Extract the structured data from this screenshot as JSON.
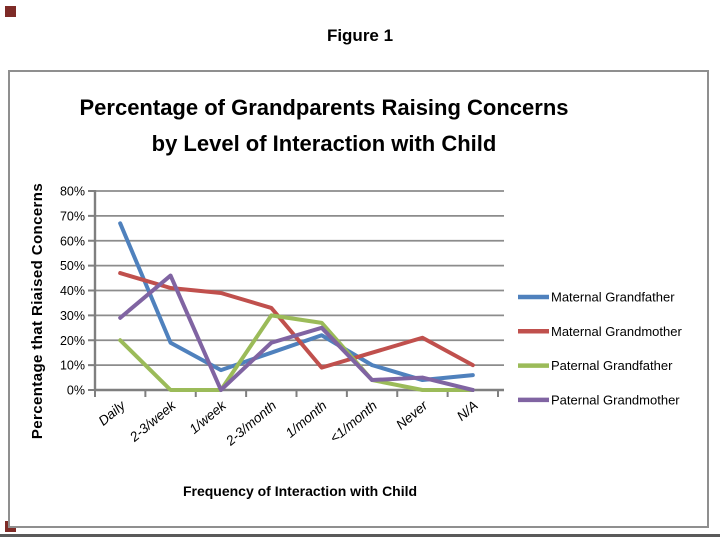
{
  "figure_label": "Figure 1",
  "colors": {
    "gridline": "#8C8C8C",
    "axis": "#7F7F7F",
    "text": "#000000",
    "frame_border": "#8F8F8F",
    "corner_accent": "#7E2B27"
  },
  "chart_data": {
    "type": "line",
    "title_line1": "Percentage of Grandparents Raising Concerns",
    "title_line2": "by Level of Interaction with Child",
    "xlabel": "Frequency of Interaction with Child",
    "ylabel": "Percentage that Riaised Concerns",
    "categories": [
      "Daily",
      "2-3/week",
      "1/week",
      "2-3/month",
      "1/month",
      "<1/month",
      "Never",
      "N/A"
    ],
    "y_ticks": [
      "0%",
      "10%",
      "20%",
      "30%",
      "40%",
      "50%",
      "60%",
      "70%",
      "80%"
    ],
    "ylim": [
      0,
      80
    ],
    "y_tick_step": 10,
    "grid": true,
    "legend_position": "right",
    "series": [
      {
        "name": "Maternal Grandfather",
        "color": "#4F81BD",
        "values": [
          67,
          19,
          8,
          15,
          22,
          10,
          4,
          6
        ]
      },
      {
        "name": "Maternal Grandmother",
        "color": "#C0504D",
        "values": [
          47,
          41,
          39,
          33,
          9,
          15,
          21,
          10
        ]
      },
      {
        "name": "Paternal Grandfather",
        "color": "#9BBB59",
        "values": [
          20,
          0,
          0,
          30,
          27,
          4,
          0,
          0
        ]
      },
      {
        "name": "Paternal Grandmother",
        "color": "#8064A2",
        "values": [
          29,
          46,
          0,
          19,
          25,
          4,
          5,
          0
        ]
      }
    ]
  }
}
